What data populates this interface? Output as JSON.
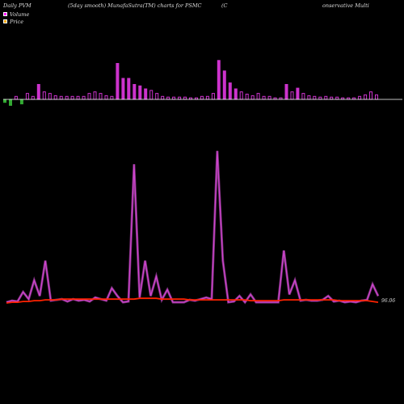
{
  "header": {
    "left": "Daily PVM",
    "center": "(5day smooth) MunafaSutra(TM) charts for PSMC",
    "right_a": "(C",
    "right_b": "onservative  Multi"
  },
  "legend": [
    {
      "label": "Volume",
      "color": "#ff00ff"
    },
    {
      "label": "Price",
      "color": "#ffa500"
    }
  ],
  "colors": {
    "background": "#000000",
    "volume_up": "#cc33cc",
    "volume_down": "#33aa33",
    "price_line": "#ff2200",
    "volume_line": "#cc44cc",
    "baseline": "#ffffff"
  },
  "chart_data": [
    {
      "type": "bar",
      "title": "Volume",
      "note": "Daily volume bars around a baseline; positive bars magenta, negative bars green",
      "values": [
        -4,
        -8,
        4,
        -6,
        8,
        4,
        20,
        10,
        8,
        5,
        4,
        4,
        4,
        4,
        4,
        8,
        10,
        8,
        5,
        4,
        48,
        28,
        28,
        20,
        18,
        14,
        12,
        8,
        4,
        3,
        3,
        3,
        3,
        2,
        2,
        4,
        4,
        8,
        52,
        38,
        22,
        14,
        10,
        7,
        5,
        8,
        4,
        4,
        2,
        2,
        20,
        10,
        15,
        8,
        5,
        4,
        3,
        4,
        3,
        3,
        2,
        2,
        2,
        4,
        6,
        10,
        6
      ],
      "ylim": [
        -12,
        55
      ]
    },
    {
      "type": "line",
      "title": "PVM",
      "series": [
        {
          "key": "volume",
          "values": [
            2,
            4,
            3,
            15,
            6,
            30,
            10,
            55,
            4,
            5,
            6,
            3,
            6,
            4,
            5,
            3,
            8,
            6,
            4,
            20,
            10,
            2,
            3,
            178,
            8,
            55,
            10,
            35,
            5,
            18,
            2,
            2,
            2,
            5,
            4,
            6,
            8,
            6,
            195,
            55,
            2,
            3,
            10,
            2,
            12,
            2,
            2,
            2,
            2,
            2,
            68,
            12,
            30,
            4,
            5,
            4,
            4,
            5,
            10,
            3,
            4,
            2,
            3,
            2,
            4,
            5,
            25,
            10
          ]
        },
        {
          "key": "price",
          "values": [
            1,
            2,
            2,
            3,
            3,
            4,
            4,
            5,
            5,
            5,
            6,
            6,
            6,
            6,
            6,
            6,
            6,
            6,
            6,
            6,
            6,
            6,
            6,
            6,
            7,
            7,
            7,
            7,
            6,
            6,
            6,
            6,
            6,
            5,
            5,
            5,
            5,
            5,
            5,
            5,
            5,
            5,
            5,
            5,
            4,
            4,
            4,
            4,
            4,
            4,
            5,
            5,
            5,
            5,
            5,
            5,
            5,
            5,
            5,
            5,
            4,
            4,
            4,
            4,
            4,
            4,
            3,
            2
          ]
        }
      ],
      "last_price_label": "96.06",
      "ylim": [
        0,
        200
      ]
    }
  ]
}
